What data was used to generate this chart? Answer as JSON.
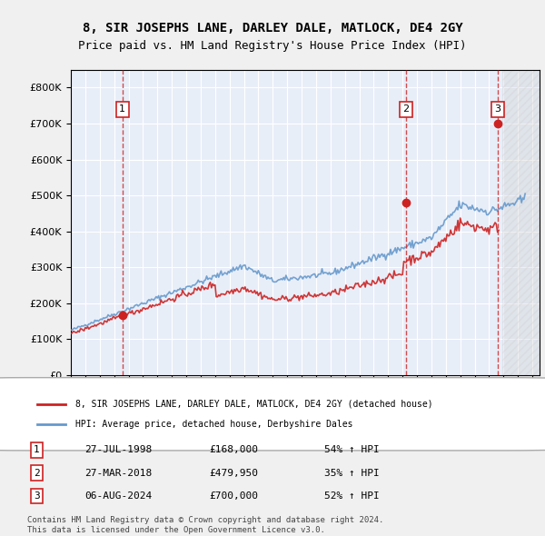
{
  "title": "8, SIR JOSEPHS LANE, DARLEY DALE, MATLOCK, DE4 2GY",
  "subtitle": "Price paid vs. HM Land Registry's House Price Index (HPI)",
  "legend_line1": "8, SIR JOSEPHS LANE, DARLEY DALE, MATLOCK, DE4 2GY (detached house)",
  "legend_line2": "HPI: Average price, detached house, Derbyshire Dales",
  "footer1": "Contains HM Land Registry data © Crown copyright and database right 2024.",
  "footer2": "This data is licensed under the Open Government Licence v3.0.",
  "transactions": [
    {
      "num": 1,
      "date": "27-JUL-1998",
      "price": 168000,
      "pct": "54% ↑ HPI",
      "year": 1998.57
    },
    {
      "num": 2,
      "date": "27-MAR-2018",
      "price": 479950,
      "pct": "35% ↑ HPI",
      "year": 2018.23
    },
    {
      "num": 3,
      "date": "06-AUG-2024",
      "price": 700000,
      "pct": "52% ↑ HPI",
      "year": 2024.59
    }
  ],
  "hpi_color": "#6699cc",
  "price_color": "#cc2222",
  "dashed_color": "#cc2222",
  "background_color": "#e8eef8",
  "hatch_color": "#cccccc",
  "grid_color": "#ffffff",
  "ylim": [
    0,
    850000
  ],
  "xlim_start": 1995.0,
  "xlim_end": 2027.5
}
